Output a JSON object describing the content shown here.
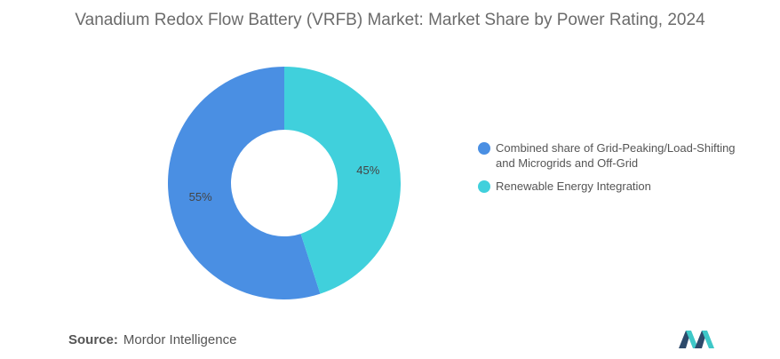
{
  "chart_data": {
    "type": "pie",
    "title": "Vanadium Redox Flow Battery (VRFB) Market: Market Share by Power Rating, 2024",
    "series": [
      {
        "name": "Combined share of Grid-Peaking/Load-Shifting and Microgrids and Off-Grid",
        "value": 55,
        "label": "55%",
        "color": "#4a8fe3"
      },
      {
        "name": "Renewable Energy Integration",
        "value": 45,
        "label": "45%",
        "color": "#40d0dc"
      }
    ],
    "donut": true,
    "legend_position": "right"
  },
  "legend": [
    {
      "label": "Combined share of Grid-Peaking/Load-Shifting and Microgrids and Off-Grid",
      "color": "#4a8fe3"
    },
    {
      "label": "Renewable Energy Integration",
      "color": "#40d0dc"
    }
  ],
  "source": {
    "label": "Source:",
    "text": "Mordor Intelligence"
  },
  "logo": {
    "icon": "mordor-intelligence-logo",
    "colors": [
      "#2d4a6b",
      "#3ec8c8"
    ]
  }
}
